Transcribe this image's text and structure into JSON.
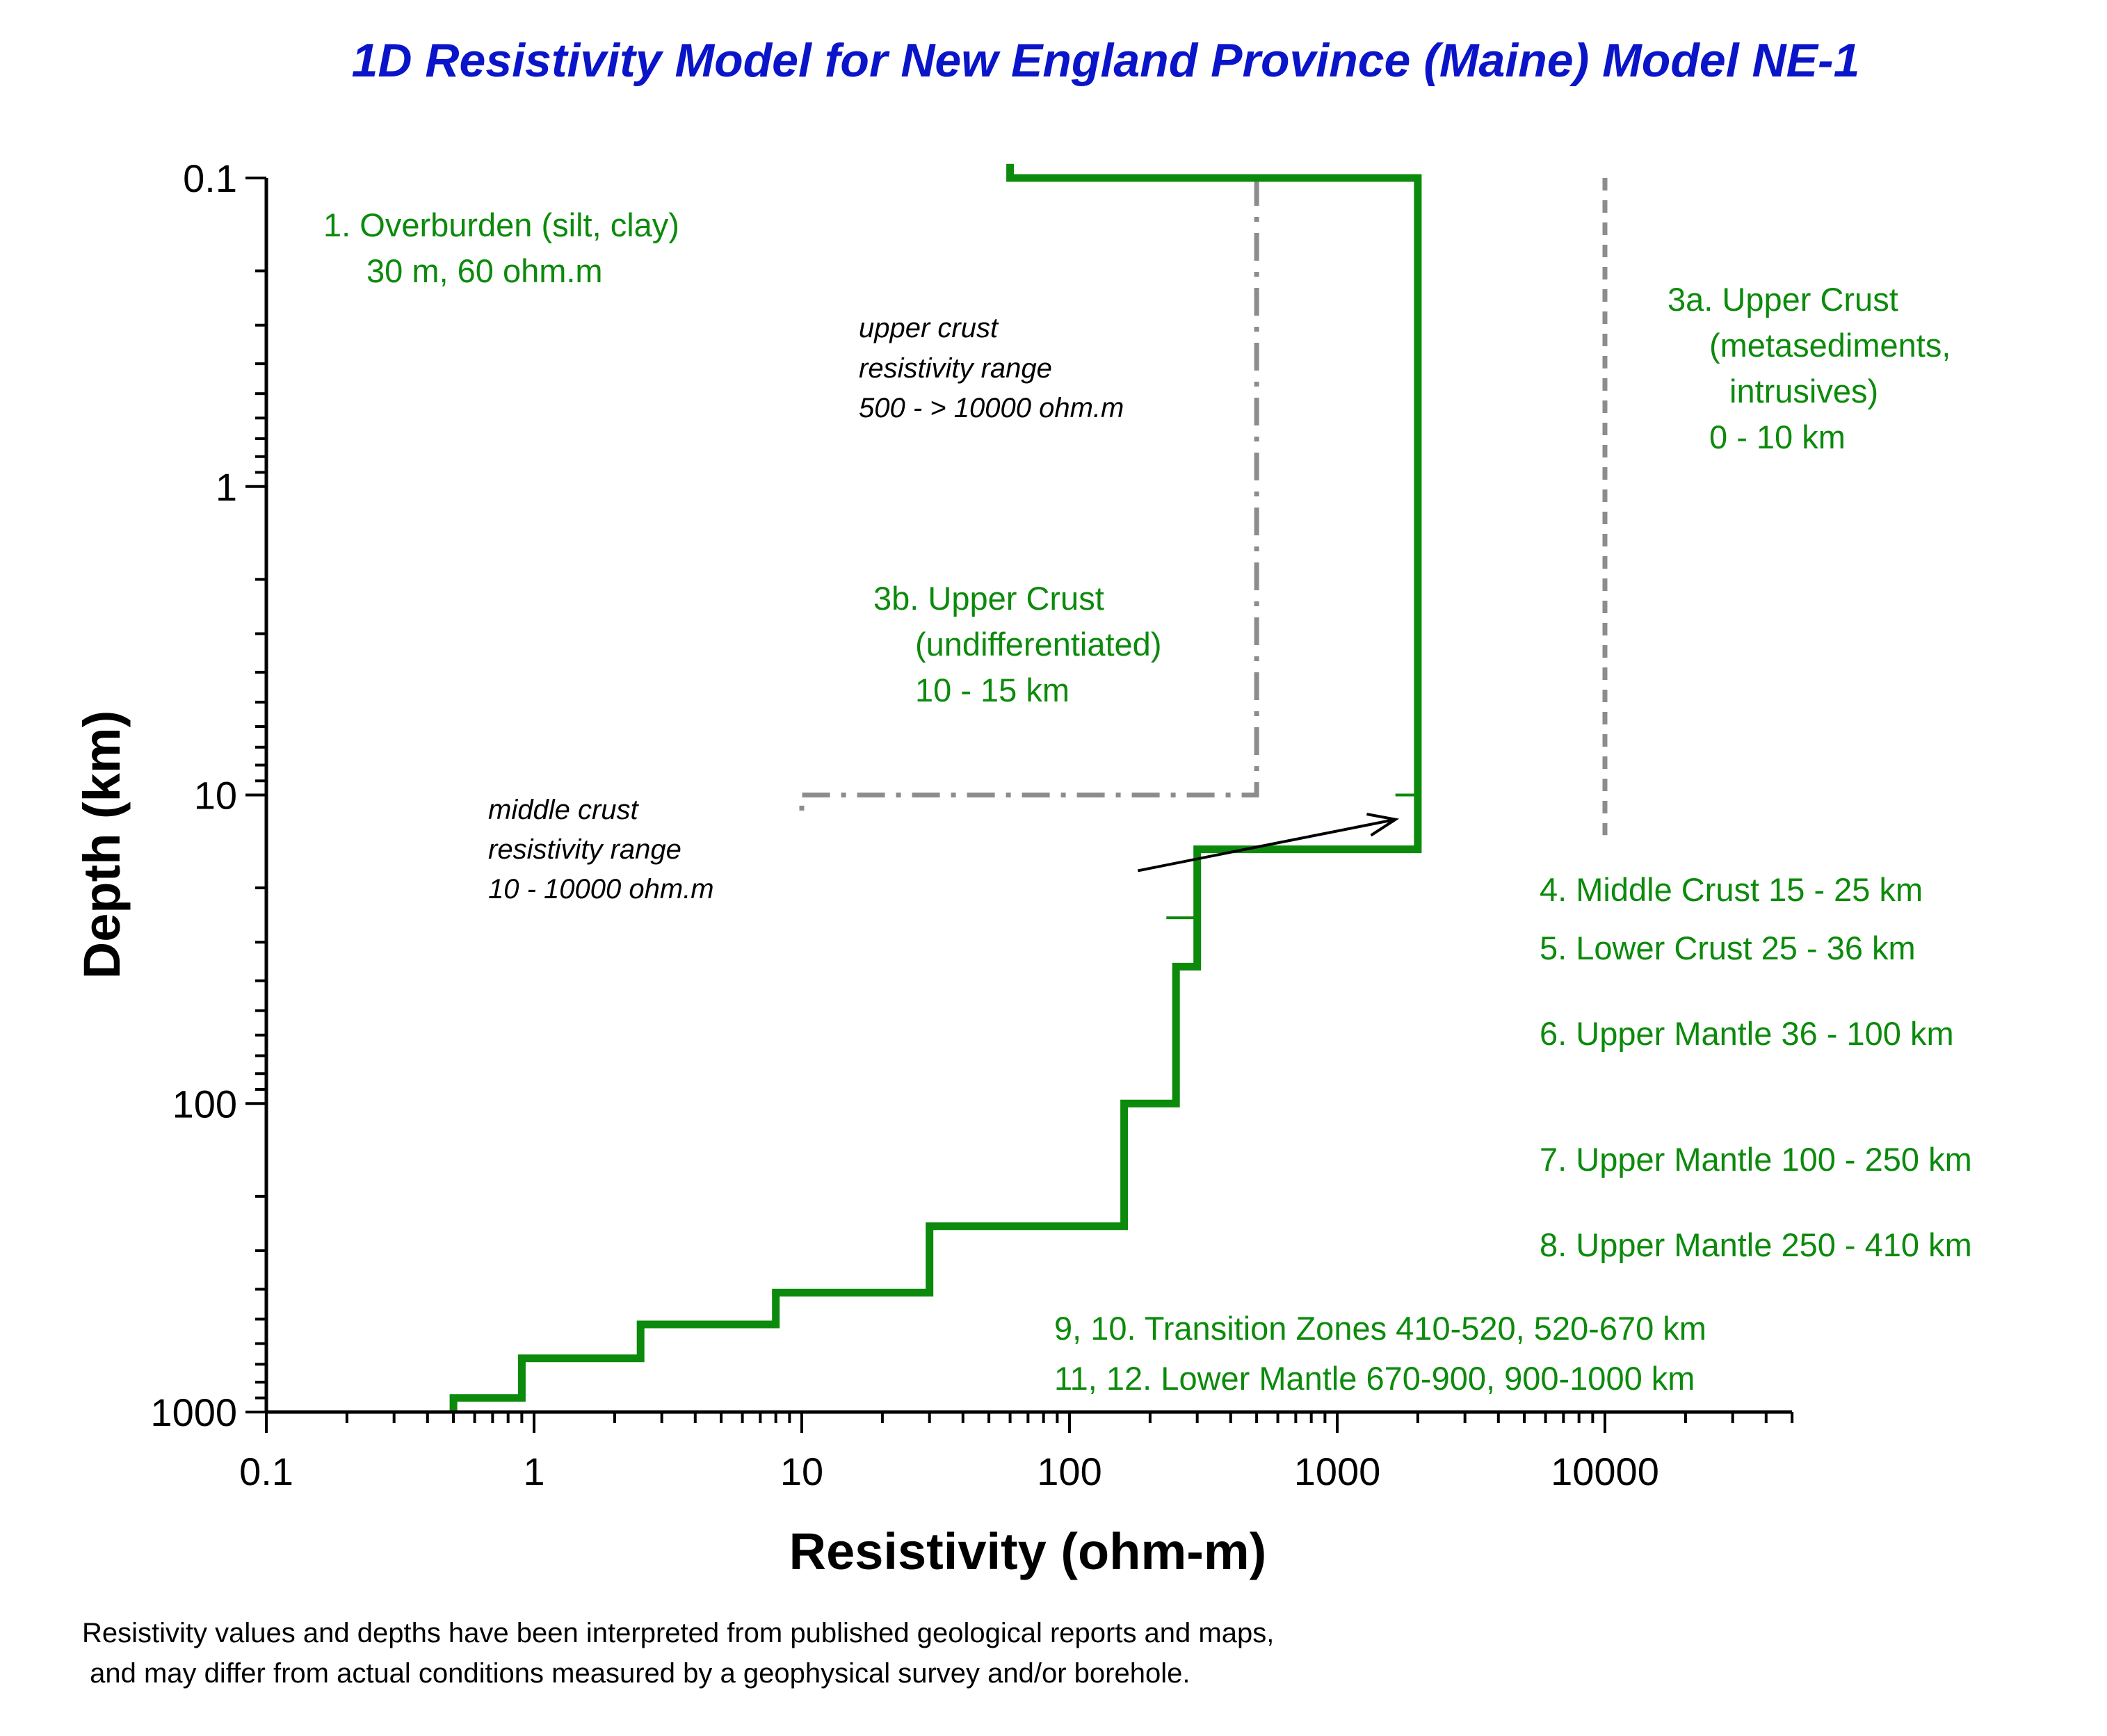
{
  "colors": {
    "title": "#0a14c8",
    "model": "#0c8a0c",
    "label": "#0c8a0c",
    "range_line": "#8c8c8c",
    "axis": "#000000"
  },
  "chart_data": {
    "type": "line",
    "title": "1D Resistivity Model for New England Province (Maine)  Model NE-1",
    "xlabel": "Resistivity (ohm-m)",
    "ylabel": "Depth (km)",
    "x_scale": "log",
    "y_scale": "log",
    "y_inverted": true,
    "xlim": [
      0.1,
      50000
    ],
    "ylim": [
      0.1,
      1000
    ],
    "x_ticks": [
      0.1,
      1,
      10,
      100,
      1000,
      10000
    ],
    "x_tick_labels": [
      "0.1",
      "1",
      "10",
      "100",
      "1000",
      "10000"
    ],
    "y_ticks": [
      0.1,
      1,
      10,
      100,
      1000
    ],
    "y_tick_labels": [
      "0.1",
      "1",
      "10",
      "100",
      "1000"
    ],
    "grid": false,
    "model_profile": {
      "x": [
        60,
        60,
        2000,
        2000,
        300,
        300,
        250,
        250,
        160,
        160,
        30,
        30,
        8,
        8,
        2.5,
        2.5,
        0.9,
        0.9,
        0.5,
        0.5
      ],
      "y": [
        0.09,
        0.1,
        0.1,
        15,
        15,
        36,
        36,
        100,
        100,
        250,
        250,
        410,
        410,
        520,
        520,
        670,
        670,
        900,
        900,
        1000
      ]
    },
    "boundary_ticks": [
      {
        "x": [
          1650,
          2000
        ],
        "y": [
          10,
          10
        ]
      },
      {
        "x": [
          230,
          300
        ],
        "y": [
          25,
          25
        ]
      }
    ],
    "upper_crust_range": {
      "x": [
        500,
        500,
        10,
        10
      ],
      "y": [
        0.1,
        10,
        10,
        12
      ]
    },
    "upper_crust_3a_marker": {
      "x": [
        10000,
        10000
      ],
      "y": [
        0.1,
        13.5
      ]
    },
    "arrow": {
      "from": [
        180,
        17.6
      ],
      "to": [
        1650,
        12
      ]
    },
    "annotations": {
      "overburden": [
        "1. Overburden (silt, clay)",
        "30 m, 60 ohm.m"
      ],
      "upper_crust_3a": [
        "3a. Upper Crust",
        "(metasediments,",
        "intrusives)",
        "0 - 10 km"
      ],
      "upper_crust_range": [
        "upper crust",
        "resistivity range",
        "500 -  > 10000 ohm.m"
      ],
      "upper_crust_3b": [
        "3b. Upper Crust",
        "(undifferentiated)",
        "10 - 15 km"
      ],
      "middle_crust_range": [
        "middle crust",
        "resistivity range",
        "10 - 10000 ohm.m"
      ],
      "layers": [
        "4. Middle Crust 15 - 25 km",
        "5. Lower Crust 25 - 36 km",
        "6. Upper Mantle 36 - 100 km",
        "7. Upper Mantle 100 - 250 km",
        "8. Upper Mantle  250 - 410 km",
        "9, 10. Transition Zones 410-520, 520-670 km",
        "11, 12. Lower Mantle 670-900, 900-1000 km"
      ]
    },
    "footnote": [
      "Resistivity values and depths have been interpreted from published geological reports and maps,",
      " and may differ from actual conditions measured by a geophysical survey and/or borehole."
    ]
  }
}
